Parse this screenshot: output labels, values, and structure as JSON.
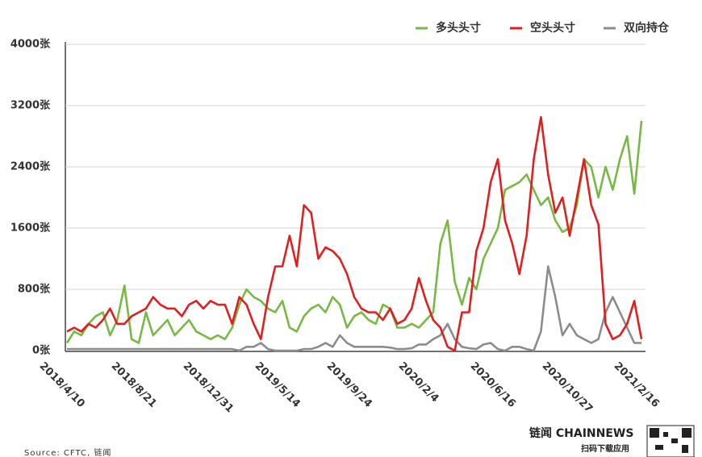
{
  "chart_data": {
    "type": "line",
    "categories": [
      "2018/4/10",
      null,
      null,
      null,
      null,
      null,
      null,
      null,
      null,
      null,
      "2018/8/21",
      null,
      null,
      null,
      null,
      null,
      null,
      null,
      null,
      null,
      "2018/12/31",
      null,
      null,
      null,
      null,
      null,
      null,
      null,
      null,
      null,
      "2019/5/14",
      null,
      null,
      null,
      null,
      null,
      null,
      null,
      null,
      null,
      "2019/9/24",
      null,
      null,
      null,
      null,
      null,
      null,
      null,
      null,
      null,
      "2020/2/4",
      null,
      null,
      null,
      null,
      null,
      null,
      null,
      null,
      null,
      "2020/6/16",
      null,
      null,
      null,
      null,
      null,
      null,
      null,
      null,
      null,
      "2020/10/27",
      null,
      null,
      null,
      null,
      null,
      null,
      null,
      null,
      null,
      "2021/2/16"
    ],
    "series": [
      {
        "name": "多头头寸",
        "color": "#76b943",
        "values": [
          100,
          250,
          200,
          350,
          450,
          500,
          200,
          400,
          850,
          150,
          100,
          500,
          200,
          300,
          400,
          200,
          300,
          400,
          250,
          200,
          150,
          200,
          150,
          300,
          600,
          800,
          700,
          650,
          550,
          500,
          650,
          300,
          250,
          450,
          550,
          600,
          500,
          700,
          600,
          300,
          450,
          500,
          400,
          350,
          600,
          550,
          300,
          300,
          350,
          300,
          400,
          500,
          1400,
          1700,
          900,
          600,
          950,
          800,
          1200,
          1400,
          1600,
          2100,
          2150,
          2200,
          2300,
          2100,
          1900,
          2000,
          1700,
          1550,
          1600,
          1900,
          2500,
          2400,
          2000,
          2400,
          2100,
          2500,
          2800,
          2050,
          3000
        ]
      },
      {
        "name": "空头头寸",
        "color": "#e02020",
        "values": [
          250,
          300,
          250,
          350,
          300,
          400,
          550,
          350,
          350,
          450,
          500,
          550,
          700,
          600,
          550,
          550,
          450,
          600,
          650,
          550,
          650,
          600,
          600,
          350,
          700,
          600,
          350,
          150,
          700,
          1100,
          1100,
          1500,
          1100,
          1900,
          1800,
          1200,
          1350,
          1300,
          1200,
          1000,
          700,
          550,
          500,
          500,
          400,
          550,
          350,
          400,
          550,
          950,
          650,
          400,
          300,
          50,
          0,
          500,
          500,
          1300,
          1600,
          2200,
          2500,
          1700,
          1400,
          1000,
          1500,
          2500,
          3050,
          2300,
          1800,
          2000,
          1500,
          2000,
          2500,
          1900,
          1650,
          350,
          150,
          200,
          350,
          650,
          150
        ]
      },
      {
        "name": "双向持仓",
        "color": "#8c8c8c",
        "values": [
          20,
          20,
          20,
          20,
          20,
          20,
          20,
          20,
          20,
          20,
          20,
          20,
          20,
          20,
          20,
          20,
          20,
          20,
          20,
          20,
          20,
          20,
          20,
          20,
          0,
          50,
          50,
          100,
          20,
          0,
          0,
          0,
          0,
          20,
          20,
          50,
          100,
          50,
          200,
          100,
          50,
          50,
          50,
          50,
          50,
          40,
          20,
          20,
          30,
          80,
          80,
          150,
          200,
          350,
          150,
          50,
          30,
          20,
          80,
          100,
          20,
          0,
          50,
          50,
          20,
          0,
          250,
          1100,
          700,
          200,
          350,
          200,
          150,
          100,
          150,
          500,
          700,
          500,
          300,
          100,
          100
        ]
      }
    ],
    "ylim": [
      0,
      4000
    ],
    "yticks": [
      {
        "value": 0,
        "label": "0张"
      },
      {
        "value": 800,
        "label": "800张"
      },
      {
        "value": 1600,
        "label": "1600张"
      },
      {
        "value": 2400,
        "label": "2400张"
      },
      {
        "value": 3200,
        "label": "3200张"
      },
      {
        "value": 4000,
        "label": "4000张"
      }
    ],
    "grid": true,
    "source": "Source: CFTC, 链闻",
    "brand": "链闻 CHAINNEWS",
    "brand_sub": "扫码下载应用"
  }
}
